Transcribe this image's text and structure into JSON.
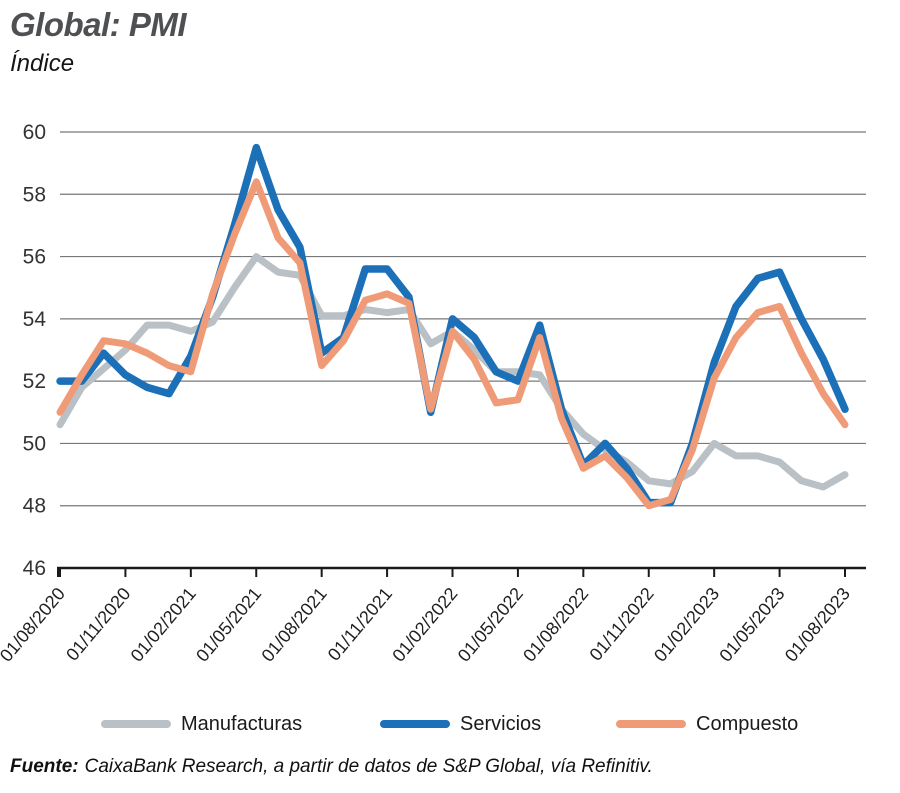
{
  "header": {
    "title": "Global: PMI",
    "subtitle": "Índice"
  },
  "chart_data": {
    "type": "line",
    "title": "Global: PMI",
    "ylabel": "Índice",
    "ylim": [
      46,
      60
    ],
    "yticks": [
      46,
      48,
      50,
      52,
      54,
      56,
      58,
      60
    ],
    "grid": "horizontal",
    "legend_position": "bottom",
    "x_tick_labels": [
      "01/08/2020",
      "01/11/2020",
      "01/02/2021",
      "01/05/2021",
      "01/08/2021",
      "01/11/2021",
      "01/02/2022",
      "01/05/2022",
      "01/08/2022",
      "01/11/2022",
      "01/02/2023",
      "01/05/2023",
      "01/08/2023"
    ],
    "points_per_tick": 3,
    "n_points": 37,
    "series": [
      {
        "name": "Manufacturas",
        "color": "#b9c1c6",
        "values": [
          50.6,
          51.8,
          52.4,
          53.0,
          53.8,
          53.8,
          53.6,
          53.9,
          55.0,
          56.0,
          55.5,
          55.4,
          54.1,
          54.1,
          54.3,
          54.2,
          54.3,
          53.2,
          53.6,
          53.0,
          52.3,
          52.3,
          52.2,
          51.1,
          50.3,
          49.8,
          49.4,
          48.8,
          48.7,
          49.1,
          50.0,
          49.6,
          49.6,
          49.4,
          48.8,
          48.6,
          49.0
        ]
      },
      {
        "name": "Servicios",
        "color": "#1c70b8",
        "values": [
          52.0,
          52.0,
          52.9,
          52.2,
          51.8,
          51.6,
          52.8,
          54.7,
          57.0,
          59.5,
          57.5,
          56.3,
          52.9,
          53.4,
          55.6,
          55.6,
          54.7,
          51.0,
          54.0,
          53.4,
          52.3,
          52.0,
          53.8,
          51.1,
          49.3,
          50.0,
          49.2,
          48.1,
          48.1,
          50.0,
          52.6,
          54.4,
          55.3,
          55.5,
          54.0,
          52.7,
          51.1
        ]
      },
      {
        "name": "Compuesto",
        "color": "#f09b77",
        "values": [
          51.0,
          52.2,
          53.3,
          53.2,
          52.9,
          52.5,
          52.3,
          54.8,
          56.7,
          58.4,
          56.6,
          55.8,
          52.5,
          53.3,
          54.6,
          54.8,
          54.5,
          51.1,
          53.6,
          52.7,
          51.3,
          51.4,
          53.4,
          50.8,
          49.2,
          49.6,
          48.9,
          48.0,
          48.2,
          49.8,
          52.1,
          53.4,
          54.2,
          54.4,
          52.9,
          51.6,
          50.6
        ]
      }
    ]
  },
  "footer": {
    "source_label": "Fuente:",
    "source_text": "CaixaBank Research, a partir de datos de S&P Global, vía Refinitiv."
  }
}
